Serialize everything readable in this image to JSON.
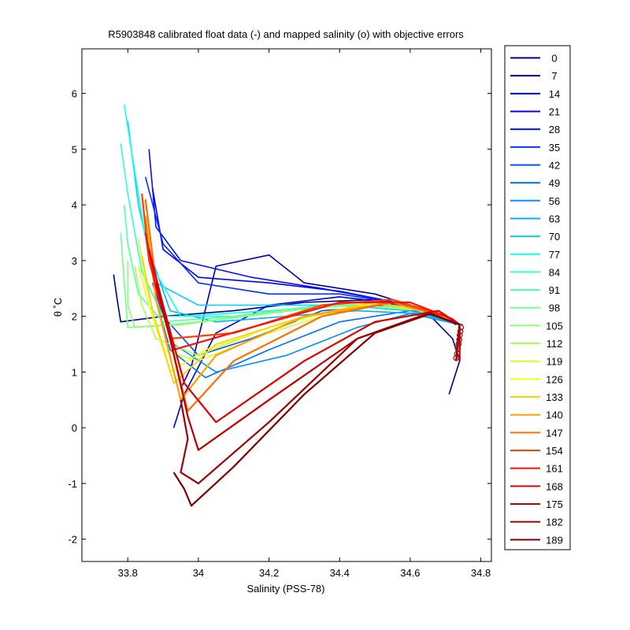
{
  "chart_data": {
    "type": "line",
    "title": "R5903848 calibrated float data (-) and mapped salinity (o) with objective errors",
    "xlabel": "Salinity (PSS-78)",
    "ylabel": "θ ˚C",
    "xlim": [
      33.67,
      34.83
    ],
    "ylim": [
      -2.4,
      6.8
    ],
    "xticks": [
      "33.8",
      "34",
      "34.2",
      "34.4",
      "34.6",
      "34.8"
    ],
    "yticks": [
      "-2",
      "-1",
      "0",
      "1",
      "2",
      "3",
      "4",
      "5",
      "6"
    ],
    "grid": false,
    "legend_position": "outside-right",
    "series": [
      {
        "name": "0",
        "color": "#00008f",
        "values": [
          [
            33.76,
            2.75
          ],
          [
            33.77,
            2.3
          ],
          [
            33.78,
            1.9
          ],
          [
            33.9,
            2.0
          ],
          [
            34.1,
            2.1
          ],
          [
            34.3,
            2.25
          ],
          [
            34.5,
            2.3
          ],
          [
            34.65,
            2.05
          ],
          [
            34.72,
            1.6
          ],
          [
            34.74,
            1.2
          ],
          [
            34.71,
            0.6
          ]
        ]
      },
      {
        "name": "7",
        "color": "#0000b0",
        "values": [
          [
            33.95,
            0.7
          ],
          [
            33.98,
            1.1
          ],
          [
            34.05,
            2.9
          ],
          [
            34.2,
            3.1
          ],
          [
            34.3,
            2.6
          ],
          [
            34.5,
            2.4
          ],
          [
            34.65,
            2.1
          ],
          [
            34.74,
            1.85
          ]
        ]
      },
      {
        "name": "14",
        "color": "#0000d0",
        "values": [
          [
            33.93,
            0.0
          ],
          [
            33.96,
            0.6
          ],
          [
            34.05,
            1.7
          ],
          [
            34.2,
            2.2
          ],
          [
            34.4,
            2.35
          ],
          [
            34.6,
            2.2
          ],
          [
            34.73,
            1.85
          ]
        ]
      },
      {
        "name": "21",
        "color": "#0000f0",
        "values": [
          [
            33.87,
            4.3
          ],
          [
            33.9,
            3.2
          ],
          [
            34.0,
            2.7
          ],
          [
            34.2,
            2.6
          ],
          [
            34.4,
            2.45
          ],
          [
            34.6,
            2.2
          ],
          [
            34.74,
            1.85
          ]
        ]
      },
      {
        "name": "28",
        "color": "#0010ff",
        "values": [
          [
            33.86,
            5.0
          ],
          [
            33.88,
            3.6
          ],
          [
            33.95,
            3.0
          ],
          [
            34.15,
            2.7
          ],
          [
            34.35,
            2.5
          ],
          [
            34.6,
            2.2
          ],
          [
            34.74,
            1.85
          ]
        ]
      },
      {
        "name": "35",
        "color": "#0030ff",
        "values": [
          [
            33.85,
            4.5
          ],
          [
            33.9,
            3.3
          ],
          [
            34.0,
            2.6
          ],
          [
            34.2,
            2.4
          ],
          [
            34.4,
            2.4
          ],
          [
            34.6,
            2.2
          ],
          [
            34.74,
            1.85
          ]
        ]
      },
      {
        "name": "42",
        "color": "#0050ff",
        "values": [
          [
            33.87,
            2.6
          ],
          [
            33.9,
            2.0
          ],
          [
            34.0,
            1.3
          ],
          [
            34.15,
            1.6
          ],
          [
            34.35,
            2.1
          ],
          [
            34.55,
            2.2
          ],
          [
            34.74,
            1.85
          ]
        ]
      },
      {
        "name": "49",
        "color": "#0070ff",
        "values": [
          [
            33.88,
            2.3
          ],
          [
            33.92,
            1.4
          ],
          [
            34.02,
            0.9
          ],
          [
            34.2,
            1.4
          ],
          [
            34.4,
            1.9
          ],
          [
            34.6,
            2.1
          ],
          [
            34.74,
            1.85
          ]
        ]
      },
      {
        "name": "56",
        "color": "#0090ff",
        "values": [
          [
            33.88,
            2.5
          ],
          [
            33.93,
            1.5
          ],
          [
            34.05,
            1.0
          ],
          [
            34.25,
            1.3
          ],
          [
            34.45,
            1.8
          ],
          [
            34.6,
            2.05
          ],
          [
            34.74,
            1.85
          ]
        ]
      },
      {
        "name": "63",
        "color": "#00b0ff",
        "values": [
          [
            33.87,
            3.0
          ],
          [
            33.92,
            2.1
          ],
          [
            34.05,
            1.9
          ],
          [
            34.25,
            2.0
          ],
          [
            34.45,
            2.1
          ],
          [
            34.62,
            2.05
          ],
          [
            34.75,
            1.85
          ]
        ]
      },
      {
        "name": "70",
        "color": "#00d0ff",
        "values": [
          [
            33.8,
            5.5
          ],
          [
            33.83,
            4.0
          ],
          [
            33.88,
            2.6
          ],
          [
            34.0,
            2.2
          ],
          [
            34.2,
            2.2
          ],
          [
            34.4,
            2.2
          ],
          [
            34.6,
            2.1
          ],
          [
            34.74,
            1.85
          ]
        ]
      },
      {
        "name": "77",
        "color": "#10ffef",
        "values": [
          [
            33.79,
            5.8
          ],
          [
            33.82,
            4.6
          ],
          [
            33.86,
            3.0
          ],
          [
            33.95,
            2.0
          ],
          [
            34.2,
            2.1
          ],
          [
            34.45,
            2.2
          ],
          [
            34.65,
            2.1
          ],
          [
            34.74,
            1.85
          ]
        ]
      },
      {
        "name": "84",
        "color": "#30ffcf",
        "values": [
          [
            33.78,
            5.1
          ],
          [
            33.8,
            4.2
          ],
          [
            33.84,
            2.8
          ],
          [
            33.9,
            2.0
          ],
          [
            34.1,
            2.0
          ],
          [
            34.35,
            2.2
          ],
          [
            34.6,
            2.15
          ],
          [
            34.74,
            1.85
          ]
        ]
      },
      {
        "name": "91",
        "color": "#50ffaf",
        "values": [
          [
            33.79,
            4.0
          ],
          [
            33.8,
            3.3
          ],
          [
            33.83,
            2.4
          ],
          [
            33.9,
            1.9
          ],
          [
            34.1,
            2.0
          ],
          [
            34.35,
            2.2
          ],
          [
            34.6,
            2.15
          ],
          [
            34.74,
            1.85
          ]
        ]
      },
      {
        "name": "98",
        "color": "#70ff8f",
        "values": [
          [
            33.78,
            3.5
          ],
          [
            33.79,
            2.6
          ],
          [
            33.8,
            1.8
          ],
          [
            33.95,
            1.85
          ],
          [
            34.2,
            2.05
          ],
          [
            34.45,
            2.25
          ],
          [
            34.65,
            2.1
          ],
          [
            34.74,
            1.85
          ]
        ]
      },
      {
        "name": "105",
        "color": "#90ff6f",
        "values": [
          [
            33.8,
            3.0
          ],
          [
            33.8,
            2.2
          ],
          [
            33.82,
            1.8
          ],
          [
            34.0,
            1.9
          ],
          [
            34.25,
            2.1
          ],
          [
            34.5,
            2.25
          ],
          [
            34.65,
            2.1
          ],
          [
            34.74,
            1.85
          ]
        ]
      },
      {
        "name": "112",
        "color": "#b0ff4f",
        "values": [
          [
            33.82,
            2.9
          ],
          [
            33.84,
            2.2
          ],
          [
            33.88,
            1.6
          ],
          [
            34.0,
            1.3
          ],
          [
            34.2,
            1.8
          ],
          [
            34.45,
            2.2
          ],
          [
            34.65,
            2.1
          ],
          [
            34.74,
            1.85
          ]
        ]
      },
      {
        "name": "119",
        "color": "#d0ff2f",
        "values": [
          [
            33.83,
            3.4
          ],
          [
            33.85,
            2.6
          ],
          [
            33.9,
            1.4
          ],
          [
            34.0,
            1.2
          ],
          [
            34.2,
            1.7
          ],
          [
            34.45,
            2.2
          ],
          [
            34.65,
            2.1
          ],
          [
            34.74,
            1.85
          ]
        ]
      },
      {
        "name": "126",
        "color": "#f0ff0f",
        "values": [
          [
            33.83,
            2.9
          ],
          [
            33.86,
            2.2
          ],
          [
            33.92,
            1.0
          ],
          [
            34.02,
            1.4
          ],
          [
            34.25,
            1.9
          ],
          [
            34.5,
            2.25
          ],
          [
            34.68,
            2.05
          ],
          [
            34.74,
            1.85
          ]
        ]
      },
      {
        "name": "133",
        "color": "#ffcf00",
        "values": [
          [
            33.84,
            3.1
          ],
          [
            33.87,
            2.1
          ],
          [
            33.93,
            0.8
          ],
          [
            34.05,
            1.5
          ],
          [
            34.3,
            2.0
          ],
          [
            34.5,
            2.25
          ],
          [
            34.68,
            2.05
          ],
          [
            34.74,
            1.85
          ]
        ]
      },
      {
        "name": "140",
        "color": "#ff9f00",
        "values": [
          [
            33.85,
            3.8
          ],
          [
            33.88,
            2.3
          ],
          [
            33.95,
            0.5
          ],
          [
            34.05,
            1.3
          ],
          [
            34.3,
            2.0
          ],
          [
            34.55,
            2.25
          ],
          [
            34.7,
            2.0
          ],
          [
            34.74,
            1.85
          ]
        ]
      },
      {
        "name": "147",
        "color": "#ff6f00",
        "values": [
          [
            33.85,
            4.1
          ],
          [
            33.88,
            2.6
          ],
          [
            33.97,
            0.3
          ],
          [
            34.1,
            1.2
          ],
          [
            34.35,
            2.0
          ],
          [
            34.55,
            2.25
          ],
          [
            34.7,
            2.0
          ],
          [
            34.74,
            1.85
          ]
        ]
      },
      {
        "name": "154",
        "color": "#ff3f00",
        "values": [
          [
            33.84,
            4.2
          ],
          [
            33.86,
            3.0
          ],
          [
            33.92,
            1.6
          ],
          [
            34.1,
            1.7
          ],
          [
            34.35,
            2.2
          ],
          [
            34.55,
            2.3
          ],
          [
            34.7,
            2.0
          ],
          [
            34.74,
            1.85
          ]
        ]
      },
      {
        "name": "161",
        "color": "#ff0f00",
        "values": [
          [
            33.85,
            3.5
          ],
          [
            33.88,
            2.5
          ],
          [
            33.93,
            1.4
          ],
          [
            34.15,
            1.8
          ],
          [
            34.4,
            2.25
          ],
          [
            34.6,
            2.25
          ],
          [
            34.72,
            1.95
          ],
          [
            34.74,
            1.85
          ]
        ]
      },
      {
        "name": "168",
        "color": "#df0000",
        "values": [
          [
            33.86,
            3.2
          ],
          [
            33.9,
            2.2
          ],
          [
            33.96,
            0.8
          ],
          [
            34.05,
            0.1
          ],
          [
            34.3,
            1.2
          ],
          [
            34.5,
            1.9
          ],
          [
            34.68,
            2.1
          ],
          [
            34.74,
            1.85
          ]
        ]
      },
      {
        "name": "175",
        "color": "#bf0000",
        "values": [
          [
            33.88,
            2.6
          ],
          [
            33.92,
            1.6
          ],
          [
            33.97,
            0.2
          ],
          [
            34.0,
            -0.4
          ],
          [
            34.2,
            0.5
          ],
          [
            34.45,
            1.6
          ],
          [
            34.65,
            2.05
          ],
          [
            34.74,
            1.85
          ],
          [
            34.74,
            1.2
          ]
        ]
      },
      {
        "name": "182",
        "color": "#9f0000",
        "values": [
          [
            33.95,
            0.5
          ],
          [
            33.97,
            -0.2
          ],
          [
            33.95,
            -0.8
          ],
          [
            34.0,
            -1.0
          ],
          [
            34.2,
            0.1
          ],
          [
            34.45,
            1.6
          ],
          [
            34.65,
            2.05
          ],
          [
            34.74,
            1.85
          ],
          [
            34.73,
            1.2
          ]
        ]
      },
      {
        "name": "189",
        "color": "#800000",
        "values": [
          [
            33.93,
            -0.8
          ],
          [
            33.96,
            -1.1
          ],
          [
            33.98,
            -1.4
          ],
          [
            34.1,
            -0.7
          ],
          [
            34.3,
            0.6
          ],
          [
            34.5,
            1.7
          ],
          [
            34.66,
            2.05
          ],
          [
            34.74,
            1.85
          ],
          [
            34.73,
            1.2
          ]
        ]
      }
    ],
    "mapped_salinity_points": {
      "color": "#b01010",
      "values": [
        [
          34.73,
          1.25
        ],
        [
          34.733,
          1.33
        ],
        [
          34.735,
          1.42
        ],
        [
          34.737,
          1.5
        ],
        [
          34.739,
          1.58
        ],
        [
          34.74,
          1.66
        ],
        [
          34.742,
          1.73
        ],
        [
          34.744,
          1.8
        ]
      ]
    }
  }
}
